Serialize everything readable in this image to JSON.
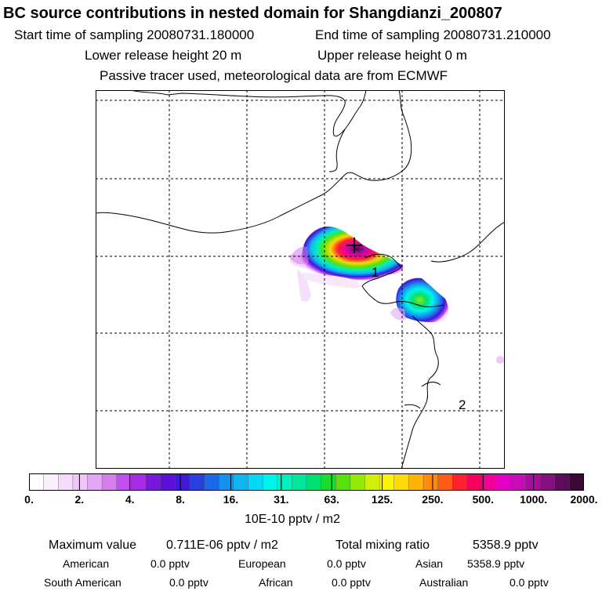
{
  "header": {
    "title": "BC  source contributions in nested domain for Shangdianzi_200807",
    "start_label": "Start time of sampling 20080731.180000",
    "end_label": "End time of sampling 20080731.210000",
    "lower_label": "Lower release height   20 m",
    "upper_label": "Upper release height    0 m",
    "tracer_note": "Passive tracer used, meteorological data are from ECMWF"
  },
  "map": {
    "markers": [
      {
        "label": "1"
      },
      {
        "label": "2"
      }
    ]
  },
  "colorbar": {
    "ticks": [
      "0.",
      "2.",
      "4.",
      "8.",
      "16.",
      "31.",
      "63.",
      "125.",
      "250.",
      "500.",
      "1000.",
      "2000."
    ],
    "colors": [
      "#ffffff",
      "#fbeefd",
      "#f6dcfb",
      "#efc6f8",
      "#e2a6f4",
      "#d47ef0",
      "#c24fee",
      "#a62ae6",
      "#7a16dc",
      "#5a10d8",
      "#3f18d8",
      "#2a3fe0",
      "#1a6ae8",
      "#1491ee",
      "#10b6f2",
      "#08d8f8",
      "#00f4ec",
      "#00f0c0",
      "#00e8a0",
      "#00e070",
      "#18dd30",
      "#56e10c",
      "#96e80a",
      "#d0f00a",
      "#f8f40a",
      "#ffd80a",
      "#ffb40a",
      "#ff8a0e",
      "#ff5a18",
      "#ff2030",
      "#f80060",
      "#f0009a",
      "#e200c4",
      "#c80cb8",
      "#a80e9e",
      "#861080",
      "#5c0c58",
      "#3a0838"
    ],
    "unit": "10E-10 pptv / m2"
  },
  "summary": {
    "max_label": "Maximum value",
    "max_value": "0.711E-06 pptv / m2",
    "total_label": "Total mixing ratio",
    "total_value": "5358.9 pptv",
    "regions": [
      {
        "name": "American",
        "value": "0.0 pptv"
      },
      {
        "name": "European",
        "value": "0.0 pptv"
      },
      {
        "name": "Asian",
        "value": "5358.9 pptv"
      },
      {
        "name": "South American",
        "value": "0.0 pptv"
      },
      {
        "name": "African",
        "value": "0.0 pptv"
      },
      {
        "name": "Australian",
        "value": "0.0 pptv"
      }
    ]
  },
  "colors": {
    "coast": "#000000",
    "grid": "#000000",
    "hot": "#3a0838"
  }
}
